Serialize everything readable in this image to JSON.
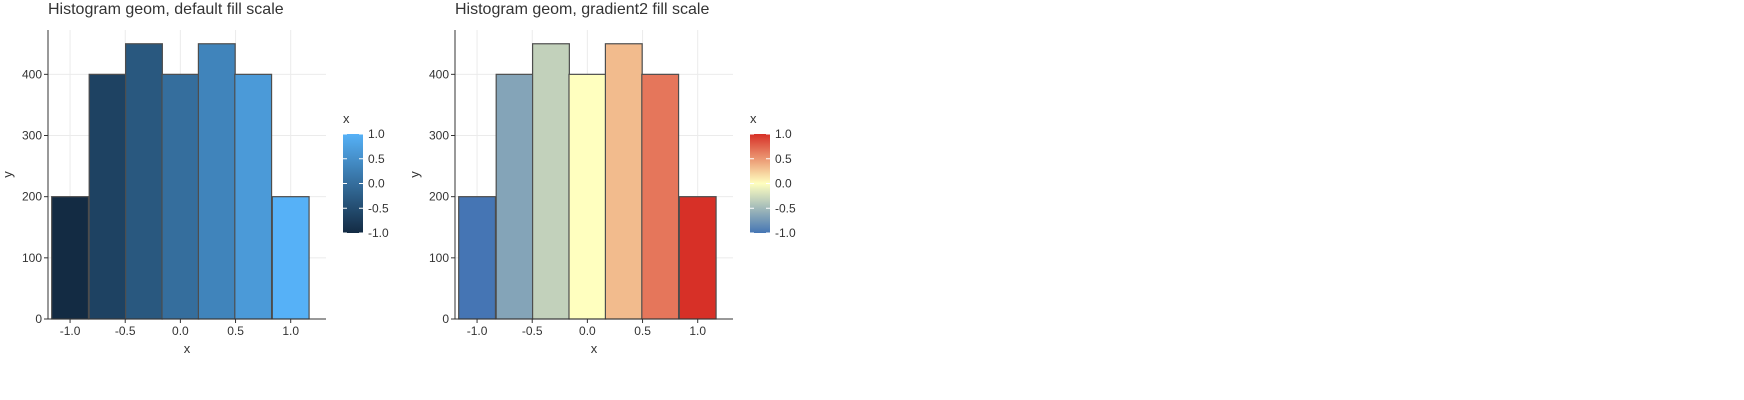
{
  "chart_data": [
    {
      "type": "bar",
      "title": "Histogram geom, default fill scale",
      "xlabel": "x",
      "ylabel": "y",
      "x": [
        -1.0,
        -0.66,
        -0.33,
        0.0,
        0.33,
        0.66,
        1.0
      ],
      "values": [
        200,
        400,
        450,
        400,
        450,
        400,
        200
      ],
      "fill_values": [
        -1.0,
        -0.66,
        -0.33,
        0.0,
        0.33,
        0.66,
        1.0
      ],
      "xlim": [
        -1.2,
        1.32
      ],
      "ylim": [
        0,
        472.5
      ],
      "xticks": [
        -1.0,
        -0.5,
        0.0,
        0.5,
        1.0
      ],
      "xtick_labels": [
        "-1.0",
        "-0.5",
        "0.0",
        "0.5",
        "1.0"
      ],
      "yticks": [
        0,
        100,
        200,
        300,
        400
      ],
      "ytick_labels": [
        "0",
        "100",
        "200",
        "300",
        "400"
      ],
      "grid": true,
      "legend": {
        "title": "x",
        "position": "right",
        "labels": [
          "1.0",
          "0.5",
          "0.0",
          "-0.5",
          "-1.0"
        ],
        "breaks": [
          1.0,
          0.5,
          0.0,
          -0.5,
          -1.0
        ]
      },
      "fill_scale": {
        "type": "gradient",
        "low": "#132b43",
        "high": "#56b1f7"
      }
    },
    {
      "type": "bar",
      "title": "Histogram geom, gradient2 fill scale",
      "xlabel": "x",
      "ylabel": "y",
      "x": [
        -1.0,
        -0.66,
        -0.33,
        0.0,
        0.33,
        0.66,
        1.0
      ],
      "values": [
        200,
        400,
        450,
        400,
        450,
        400,
        200
      ],
      "fill_values": [
        -1.0,
        -0.66,
        -0.33,
        0.0,
        0.33,
        0.66,
        1.0
      ],
      "xlim": [
        -1.2,
        1.32
      ],
      "ylim": [
        0,
        472.5
      ],
      "xticks": [
        -1.0,
        -0.5,
        0.0,
        0.5,
        1.0
      ],
      "xtick_labels": [
        "-1.0",
        "-0.5",
        "0.0",
        "0.5",
        "1.0"
      ],
      "yticks": [
        0,
        100,
        200,
        300,
        400
      ],
      "ytick_labels": [
        "0",
        "100",
        "200",
        "300",
        "400"
      ],
      "grid": true,
      "legend": {
        "title": "x",
        "position": "right",
        "labels": [
          "1.0",
          "0.5",
          "0.0",
          "-0.5",
          "-1.0"
        ],
        "breaks": [
          1.0,
          0.5,
          0.0,
          -0.5,
          -1.0
        ]
      },
      "fill_scale": {
        "type": "gradient2",
        "low": "#4575b4",
        "mid": "#ffffbf",
        "high": "#d73027"
      }
    }
  ]
}
